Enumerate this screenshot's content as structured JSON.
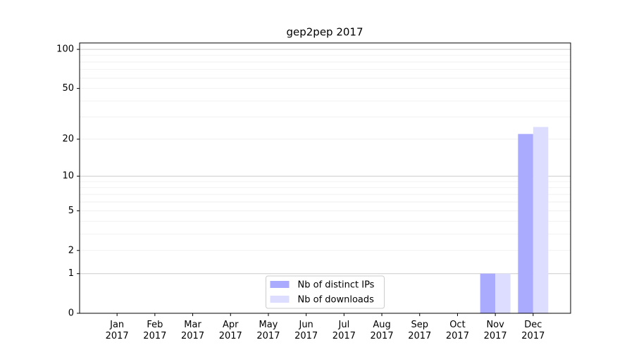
{
  "chart_data": {
    "type": "bar",
    "title": "gep2pep 2017",
    "categories": [
      "Jan 2017",
      "Feb 2017",
      "Mar 2017",
      "Apr 2017",
      "May 2017",
      "Jun 2017",
      "Jul 2017",
      "Aug 2017",
      "Sep 2017",
      "Oct 2017",
      "Nov 2017",
      "Dec 2017"
    ],
    "series": [
      {
        "name": "Nb of distinct IPs",
        "color": "#aaaaff",
        "values": [
          0,
          0,
          0,
          0,
          0,
          0,
          0,
          0,
          0,
          0,
          1,
          22
        ]
      },
      {
        "name": "Nb of downloads",
        "color": "#ddddff",
        "values": [
          0,
          0,
          0,
          0,
          0,
          0,
          0,
          0,
          0,
          0,
          1,
          25
        ]
      }
    ],
    "yscale": "log1p",
    "ylim": [
      0,
      112
    ],
    "yticks": [
      0,
      1,
      2,
      5,
      10,
      20,
      50,
      100
    ],
    "grid_major": [
      1,
      10,
      100
    ],
    "grid_minor": [
      2,
      3,
      4,
      5,
      6,
      7,
      8,
      9,
      20,
      30,
      40,
      50,
      60,
      70,
      80,
      90
    ],
    "legend": "lower center"
  }
}
